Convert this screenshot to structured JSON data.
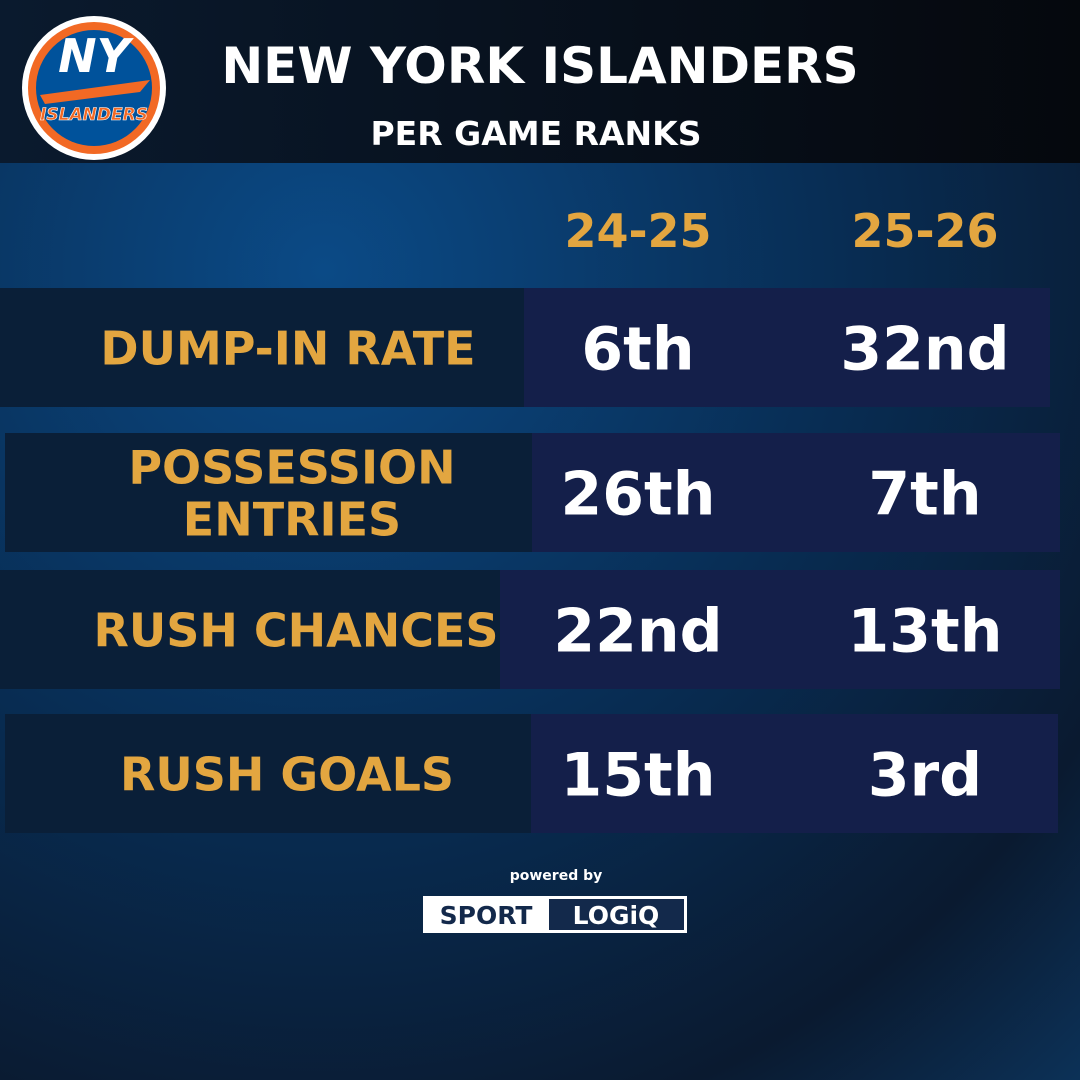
{
  "header": {
    "title": "NEW YORK ISLANDERS",
    "subtitle": "PER GAME RANKS"
  },
  "logo": {
    "monogram": "NY",
    "wordmark": "ISLANDERS"
  },
  "table": {
    "columns": [
      "24-25",
      "25-26"
    ],
    "rows": [
      {
        "label": [
          "DUMP-IN RATE"
        ],
        "values": [
          "6th",
          "32nd"
        ]
      },
      {
        "label": [
          "POSSESSION",
          "ENTRIES"
        ],
        "values": [
          "26th",
          "7th"
        ]
      },
      {
        "label": [
          "RUSH CHANCES"
        ],
        "values": [
          "22nd",
          "13th"
        ]
      },
      {
        "label": [
          "RUSH GOALS"
        ],
        "values": [
          "15th",
          "3rd"
        ]
      }
    ]
  },
  "footer": {
    "note": "powered by",
    "brand": [
      "SPORT",
      "LOGiQ"
    ]
  }
}
